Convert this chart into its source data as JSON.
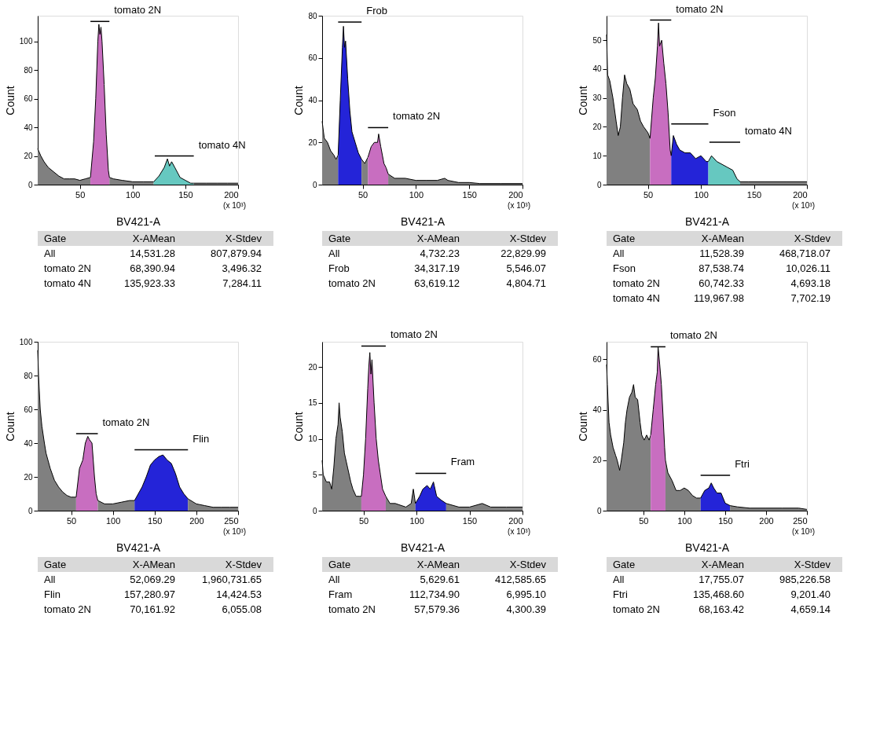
{
  "chart_data": [
    {
      "type": "area",
      "xlabel": "BV421-A",
      "ylabel": "Count",
      "xlim": [
        10,
        200
      ],
      "ylim": [
        0,
        118
      ],
      "xticks": [
        50,
        100,
        150,
        200
      ],
      "yticks": [
        0,
        20,
        40,
        60,
        80,
        100
      ],
      "series": [
        {
          "color": "#808080",
          "x": [
            10,
            13,
            16,
            20,
            25,
            30,
            35,
            40,
            45,
            50,
            55,
            60
          ],
          "values": [
            25,
            20,
            16,
            12,
            9,
            6,
            4,
            4,
            4,
            3,
            4,
            5
          ]
        },
        {
          "color": "#c86ec0",
          "x": [
            60,
            63,
            65,
            67,
            68,
            69,
            70,
            71,
            73,
            75,
            77,
            78
          ],
          "values": [
            5,
            30,
            60,
            100,
            112,
            105,
            110,
            100,
            70,
            35,
            10,
            5
          ]
        },
        {
          "color": "#808080",
          "x": [
            78,
            82,
            90,
            100,
            110,
            120
          ],
          "values": [
            5,
            4,
            3,
            2,
            2,
            2
          ]
        },
        {
          "color": "#66c8c0",
          "x": [
            120,
            125,
            130,
            133,
            135,
            137,
            140,
            145,
            150,
            155,
            158
          ],
          "values": [
            2,
            6,
            12,
            18,
            13,
            16,
            12,
            5,
            3,
            1,
            1
          ]
        },
        {
          "color": "#808080",
          "x": [
            158,
            170,
            180,
            190,
            200
          ],
          "values": [
            1,
            1,
            1,
            1,
            1
          ]
        },
        {
          "type": "line",
          "name": "tomato 2N",
          "color": "#000000",
          "x": [
            60,
            78
          ],
          "values": [
            114,
            114
          ]
        },
        {
          "type": "line",
          "name": "tomato 4N",
          "color": "#000000",
          "x": [
            121,
            158
          ],
          "values": [
            20,
            20
          ]
        }
      ],
      "annotations": [
        "(x 10³)"
      ]
    },
    {
      "type": "other",
      "annotations": [
        "Gate",
        "X-AMean",
        "X-Stdev",
        "All",
        "14,531.28",
        "807,879.94",
        "tomato 2N",
        "68,390.94",
        "3,496.32",
        "tomato 4N",
        "135,923.33",
        "7,284.11"
      ]
    },
    {
      "type": "area",
      "xlabel": "BV421-A",
      "ylabel": "Count",
      "xlim": [
        12,
        200
      ],
      "ylim": [
        0,
        80
      ],
      "xticks": [
        50,
        100,
        150,
        200
      ],
      "yticks": [
        0,
        20,
        40,
        60,
        80
      ],
      "series": [
        {
          "color": "#808080",
          "x": [
            12,
            14,
            17,
            20,
            23,
            25,
            27
          ],
          "values": [
            30,
            22,
            20,
            16,
            14,
            12,
            14
          ]
        },
        {
          "color": "#2424d8",
          "x": [
            27,
            29,
            31,
            32,
            33,
            34,
            36,
            38,
            40,
            43,
            46,
            49
          ],
          "values": [
            14,
            40,
            65,
            75,
            65,
            68,
            50,
            35,
            25,
            20,
            15,
            12
          ]
        },
        {
          "color": "#808080",
          "x": [
            49,
            52,
            55
          ],
          "values": [
            12,
            10,
            13
          ]
        },
        {
          "color": "#c86ec0",
          "x": [
            55,
            58,
            61,
            64,
            65,
            67,
            70,
            72,
            74
          ],
          "values": [
            13,
            18,
            20,
            20,
            24,
            18,
            10,
            8,
            5
          ]
        },
        {
          "color": "#808080",
          "x": [
            74,
            80,
            90,
            100,
            110,
            120,
            127,
            130,
            140,
            150,
            160,
            180,
            200
          ],
          "values": [
            5,
            3,
            3,
            2,
            2,
            2,
            3,
            2,
            1,
            1,
            0.5,
            0.5,
            0.5
          ]
        },
        {
          "type": "line",
          "name": "Frob",
          "color": "#000000",
          "x": [
            27,
            49
          ],
          "values": [
            77,
            77
          ]
        },
        {
          "type": "line",
          "name": "tomato 2N",
          "color": "#000000",
          "x": [
            55,
            74
          ],
          "values": [
            27,
            27
          ]
        }
      ],
      "annotations": [
        "(x 10³)"
      ]
    },
    {
      "type": "other",
      "annotations": [
        "Gate",
        "X-AMean",
        "X-Stdev",
        "All",
        "4,732.23",
        "22,829.99",
        "Frob",
        "34,317.19",
        "5,546.07",
        "tomato 2N",
        "63,619.12",
        "4,804.71"
      ]
    },
    {
      "type": "area",
      "xlabel": "BV421-A",
      "ylabel": "Count",
      "xlim": [
        11,
        200
      ],
      "ylim": [
        0,
        58.5
      ],
      "xticks": [
        50,
        100,
        150,
        200
      ],
      "yticks": [
        0,
        10,
        20,
        30,
        40,
        50
      ],
      "series": [
        {
          "color": "#808080",
          "x": [
            11,
            12,
            14,
            17,
            20,
            22,
            24,
            26,
            28,
            30,
            33,
            36,
            40,
            43,
            46,
            50,
            52
          ],
          "values": [
            52,
            38,
            36,
            30,
            22,
            17,
            20,
            30,
            38,
            35,
            33,
            28,
            26,
            22,
            20,
            18,
            16
          ]
        },
        {
          "color": "#c86ec0",
          "x": [
            52,
            55,
            57,
            59,
            60,
            61,
            63,
            65,
            67,
            69,
            71,
            72
          ],
          "values": [
            16,
            30,
            37,
            48,
            56,
            48,
            50,
            42,
            35,
            25,
            12,
            10
          ]
        },
        {
          "color": "#2424d8",
          "x": [
            72,
            74,
            77,
            80,
            85,
            90,
            95,
            100,
            105,
            107
          ],
          "values": [
            10,
            17,
            14,
            12,
            11,
            11,
            9,
            10,
            8,
            8
          ]
        },
        {
          "color": "#66c8c0",
          "x": [
            107,
            110,
            115,
            120,
            125,
            130,
            134,
            137
          ],
          "values": [
            8,
            10,
            8,
            7,
            6,
            5,
            2,
            1
          ]
        },
        {
          "color": "#808080",
          "x": [
            137,
            145,
            160,
            180,
            200
          ],
          "values": [
            1,
            1,
            1,
            1,
            1
          ]
        },
        {
          "type": "line",
          "name": "tomato 2N",
          "color": "#000000",
          "x": [
            52,
            72
          ],
          "values": [
            57,
            57
          ]
        },
        {
          "type": "line",
          "name": "Fson",
          "color": "#000000",
          "x": [
            72,
            107
          ],
          "values": [
            21,
            21
          ]
        },
        {
          "type": "line",
          "name": "tomato 4N",
          "color": "#000000",
          "x": [
            108,
            137
          ],
          "values": [
            14.7,
            14.7
          ]
        }
      ],
      "annotations": [
        "(x 10³)"
      ]
    },
    {
      "type": "other",
      "annotations": [
        "Gate",
        "X-AMean",
        "X-Stdev",
        "All",
        "11,528.39",
        "468,718.07",
        "Fson",
        "87,538.74",
        "10,026.11",
        "tomato 2N",
        "60,742.33",
        "4,693.18",
        "tomato 4N",
        "119,967.98",
        "7,702.19"
      ]
    },
    {
      "type": "area",
      "xlabel": "BV421-A",
      "ylabel": "Count",
      "xlim": [
        10,
        250
      ],
      "ylim": [
        0,
        100
      ],
      "xticks": [
        50,
        100,
        150,
        200,
        250
      ],
      "yticks": [
        0,
        20,
        40,
        60,
        80,
        100
      ],
      "series": [
        {
          "color": "#808080",
          "x": [
            10,
            11,
            13,
            15,
            18,
            20,
            25,
            30,
            35,
            40,
            45,
            50,
            56
          ],
          "values": [
            95,
            80,
            60,
            50,
            40,
            34,
            25,
            18,
            14,
            11,
            9,
            8,
            8
          ]
        },
        {
          "color": "#c86ec0",
          "x": [
            56,
            60,
            64,
            67,
            70,
            72,
            75,
            78,
            80,
            82
          ],
          "values": [
            8,
            25,
            30,
            40,
            44,
            42,
            40,
            20,
            10,
            6
          ]
        },
        {
          "color": "#808080",
          "x": [
            82,
            90,
            100,
            110,
            120,
            126
          ],
          "values": [
            6,
            4,
            4,
            5,
            6,
            6
          ]
        },
        {
          "color": "#2424d8",
          "x": [
            126,
            135,
            140,
            145,
            150,
            155,
            160,
            165,
            170,
            175,
            180,
            185,
            190
          ],
          "values": [
            6,
            14,
            20,
            27,
            30,
            32,
            33,
            30,
            28,
            22,
            14,
            10,
            7
          ]
        },
        {
          "color": "#808080",
          "x": [
            190,
            200,
            210,
            220,
            230,
            240,
            250
          ],
          "values": [
            7,
            4,
            3,
            2,
            2,
            2,
            2
          ]
        },
        {
          "type": "line",
          "name": "tomato 2N",
          "color": "#000000",
          "x": [
            56,
            82
          ],
          "values": [
            45.6,
            45.6
          ]
        },
        {
          "type": "line",
          "name": "Flin",
          "color": "#000000",
          "x": [
            126,
            190
          ],
          "values": [
            36,
            36
          ]
        }
      ],
      "annotations": [
        "(x 10³)"
      ]
    },
    {
      "type": "other",
      "annotations": [
        "Gate",
        "X-AMean",
        "X-Stdev",
        "All",
        "52,069.29",
        "1,960,731.65",
        "Flin",
        "157,280.97",
        "14,424.53",
        "tomato 2N",
        "70,161.92",
        "6,055.08"
      ]
    },
    {
      "type": "area",
      "xlabel": "BV421-A",
      "ylabel": "Count",
      "xlim": [
        11,
        200
      ],
      "ylim": [
        0,
        23.5
      ],
      "xticks": [
        50,
        100,
        150,
        200
      ],
      "yticks": [
        0,
        5,
        10,
        15,
        20
      ],
      "series": [
        {
          "color": "#808080",
          "x": [
            11,
            12,
            15,
            18,
            20,
            22,
            24,
            26,
            27,
            28,
            30,
            32,
            35,
            38,
            40,
            43,
            46,
            48
          ],
          "values": [
            7,
            5,
            4,
            4,
            3,
            6,
            10,
            12,
            15,
            13,
            11,
            8,
            6,
            4,
            3,
            2,
            2,
            2
          ]
        },
        {
          "color": "#c86ec0",
          "x": [
            48,
            50,
            52,
            54,
            55,
            56,
            57,
            58,
            60,
            62,
            64,
            66,
            68,
            71
          ],
          "values": [
            2,
            5,
            10,
            17,
            20,
            22,
            19,
            21,
            15,
            10,
            7,
            5,
            3,
            2
          ]
        },
        {
          "color": "#808080",
          "x": [
            71,
            75,
            80,
            90,
            95,
            97,
            99
          ],
          "values": [
            2,
            1,
            1,
            0.5,
            1,
            3,
            1
          ]
        },
        {
          "color": "#2424d8",
          "x": [
            99,
            103,
            106,
            110,
            113,
            116,
            119,
            123,
            128
          ],
          "values": [
            1,
            2,
            3,
            3.5,
            3,
            4,
            2,
            1.5,
            1
          ]
        },
        {
          "color": "#808080",
          "x": [
            128,
            140,
            150,
            162,
            170,
            185,
            200
          ],
          "values": [
            1,
            0.5,
            0.5,
            1,
            0.5,
            0.5,
            0.5
          ]
        },
        {
          "type": "line",
          "name": "tomato 2N",
          "color": "#000000",
          "x": [
            48,
            71
          ],
          "values": [
            22.9,
            22.9
          ]
        },
        {
          "type": "line",
          "name": "Fram",
          "color": "#000000",
          "x": [
            99,
            128
          ],
          "values": [
            5.2,
            5.2
          ]
        }
      ],
      "annotations": [
        "(x 10³)"
      ]
    },
    {
      "type": "other",
      "annotations": [
        "Gate",
        "X-AMean",
        "X-Stdev",
        "All",
        "5,629.61",
        "412,585.65",
        "Fram",
        "112,734.90",
        "6,995.10",
        "tomato 2N",
        "57,579.36",
        "4,300.39"
      ]
    },
    {
      "type": "area",
      "xlabel": "BV421-A",
      "ylabel": "Count",
      "xlim": [
        5,
        250
      ],
      "ylim": [
        0,
        67
      ],
      "xticks": [
        50,
        100,
        150,
        200,
        250
      ],
      "yticks": [
        0,
        20,
        40,
        60
      ],
      "series": [
        {
          "color": "#808080",
          "x": [
            5,
            6,
            8,
            10,
            13,
            16,
            18,
            21,
            23,
            26,
            28,
            30,
            33,
            36,
            38,
            40,
            43,
            46,
            48,
            51,
            54,
            57,
            59
          ],
          "values": [
            58,
            50,
            35,
            30,
            25,
            22,
            20,
            16,
            20,
            27,
            35,
            40,
            45,
            47,
            50,
            45,
            44,
            35,
            30,
            28,
            30,
            28,
            30
          ]
        },
        {
          "color": "#c86ec0",
          "x": [
            59,
            62,
            65,
            67,
            68,
            70,
            72,
            74,
            76,
            77
          ],
          "values": [
            30,
            40,
            50,
            55,
            65,
            58,
            50,
            38,
            25,
            20
          ]
        },
        {
          "color": "#808080",
          "x": [
            77,
            80,
            85,
            90,
            95,
            100,
            105,
            110,
            115,
            120
          ],
          "values": [
            20,
            15,
            12,
            8,
            8,
            9,
            8,
            6,
            5,
            5
          ]
        },
        {
          "color": "#2424d8",
          "x": [
            120,
            125,
            130,
            133,
            136,
            140,
            145,
            150,
            156
          ],
          "values": [
            5,
            8,
            9,
            11,
            9,
            7,
            7,
            3,
            2
          ]
        },
        {
          "color": "#808080",
          "x": [
            156,
            165,
            180,
            200,
            220,
            240,
            250
          ],
          "values": [
            2,
            1.5,
            1,
            1,
            1,
            1,
            0.5
          ]
        },
        {
          "type": "line",
          "name": "tomato 2N",
          "color": "#000000",
          "x": [
            59,
            77
          ],
          "values": [
            65,
            65
          ]
        },
        {
          "type": "line",
          "name": "Ftri",
          "color": "#000000",
          "x": [
            120,
            156
          ],
          "values": [
            14,
            14
          ]
        }
      ],
      "annotations": [
        "(x 10³)"
      ]
    },
    {
      "type": "other",
      "annotations": [
        "Gate",
        "X-AMean",
        "X-Stdev",
        "All",
        "17,755.07",
        "985,226.58",
        "Ftri",
        "135,468.60",
        "9,201.40",
        "tomato 2N",
        "68,163.42",
        "4,659.14"
      ]
    }
  ]
}
